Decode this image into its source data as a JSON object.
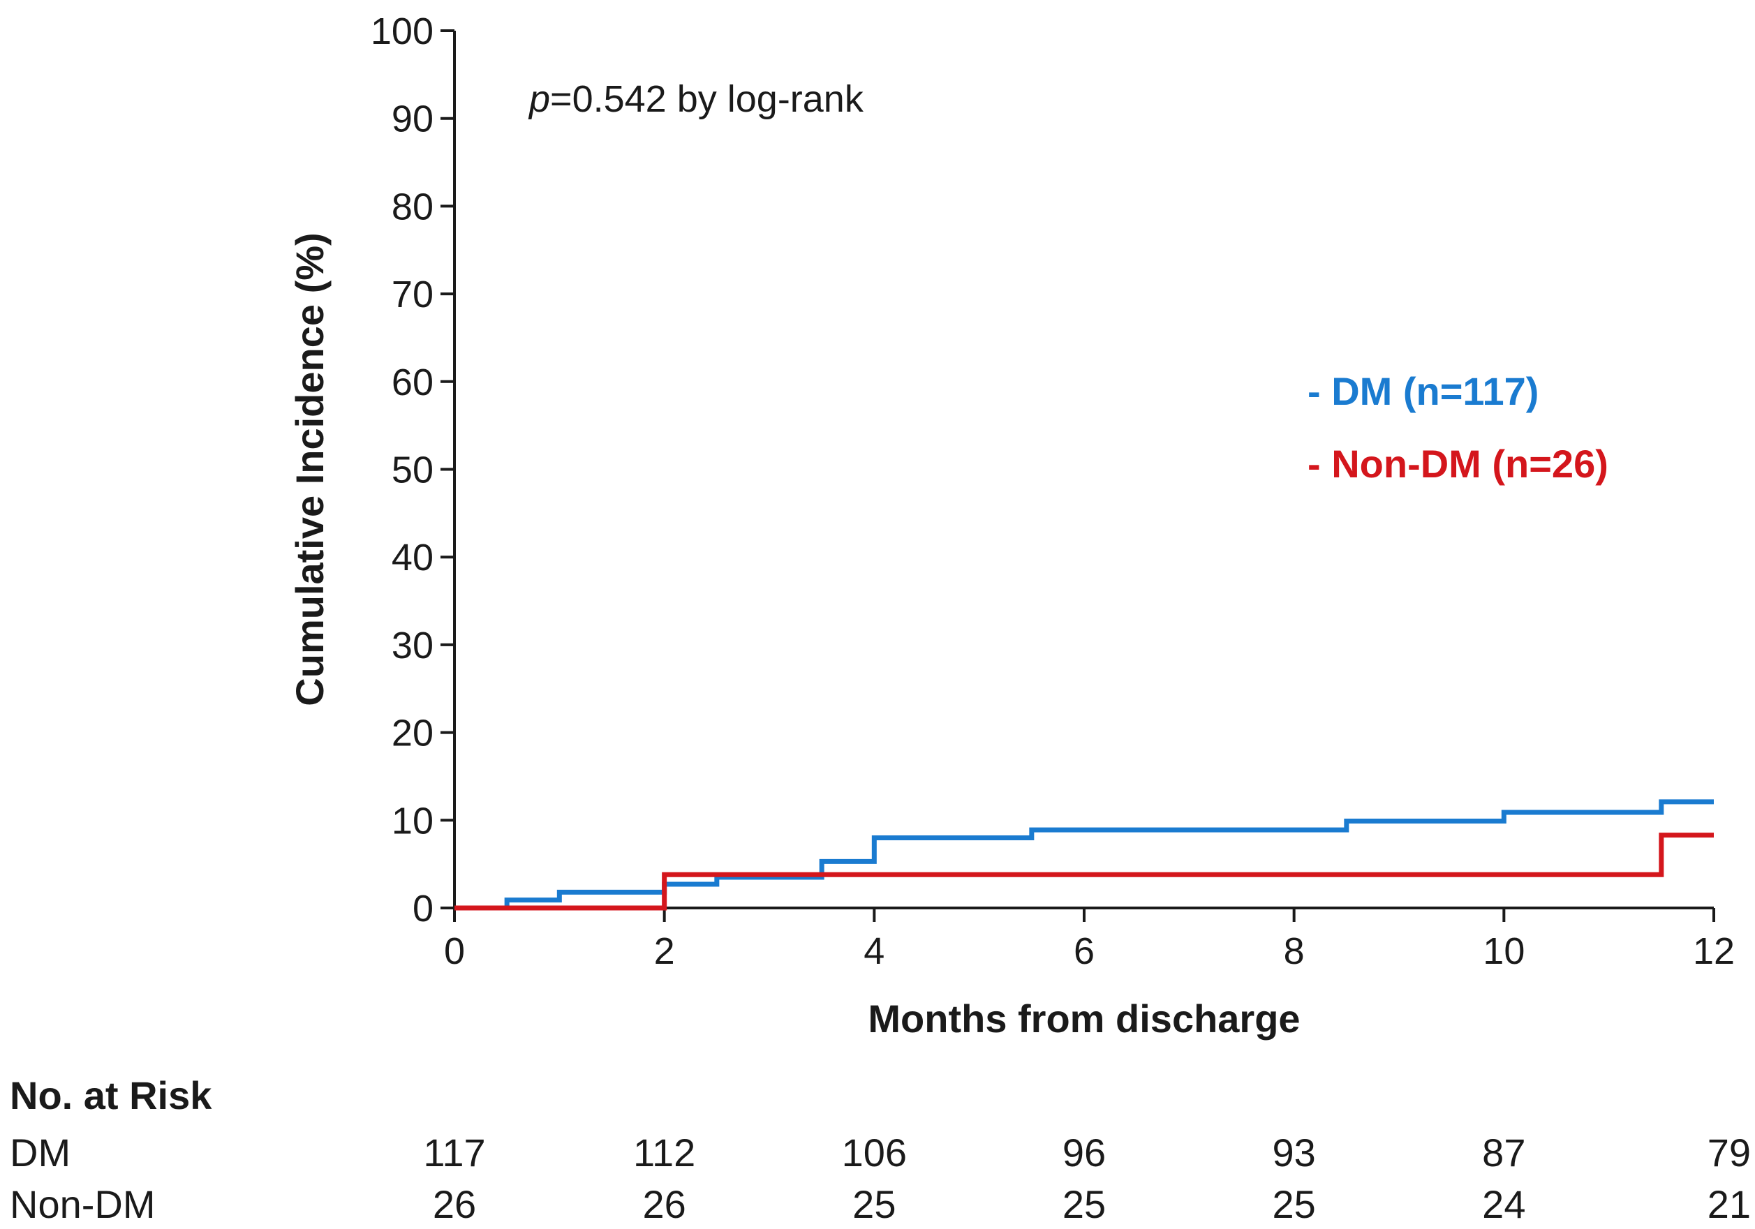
{
  "chart_data": {
    "type": "line",
    "step": true,
    "xlabel": "Months from discharge",
    "ylabel": "Cumulative Incidence (%)",
    "xlim": [
      0,
      12
    ],
    "ylim": [
      0,
      100
    ],
    "xticks": [
      0,
      2,
      4,
      6,
      8,
      10,
      12
    ],
    "yticks": [
      0,
      10,
      20,
      30,
      40,
      50,
      60,
      70,
      80,
      90,
      100
    ],
    "annotation": {
      "italic": "p",
      "text": "=0.542 by log-rank"
    },
    "legend_position": "right",
    "series": [
      {
        "name": "DM (n=117)",
        "legend_label": "- DM (n=117)",
        "color": "#1a7bd0",
        "x": [
          0,
          0.5,
          1,
          2,
          2.5,
          3.5,
          4,
          5.5,
          8.5,
          10,
          11.5,
          12
        ],
        "y": [
          0,
          0.9,
          1.8,
          2.7,
          3.5,
          5.3,
          8.0,
          8.9,
          9.9,
          10.9,
          12.1,
          12.1
        ]
      },
      {
        "name": "Non-DM (n=26)",
        "legend_label": "- Non-DM (n=26)",
        "color": "#d4161c",
        "x": [
          0,
          2,
          11.5,
          12
        ],
        "y": [
          0,
          3.8,
          8.3,
          8.3
        ]
      }
    ],
    "risk_table": {
      "title": "No. at Risk",
      "rows": [
        {
          "label": "DM",
          "values": [
            "117",
            "112",
            "106",
            "96",
            "93",
            "87",
            "79"
          ]
        },
        {
          "label": "Non-DM",
          "values": [
            "26",
            "26",
            "25",
            "25",
            "25",
            "24",
            "21"
          ]
        }
      ]
    }
  }
}
